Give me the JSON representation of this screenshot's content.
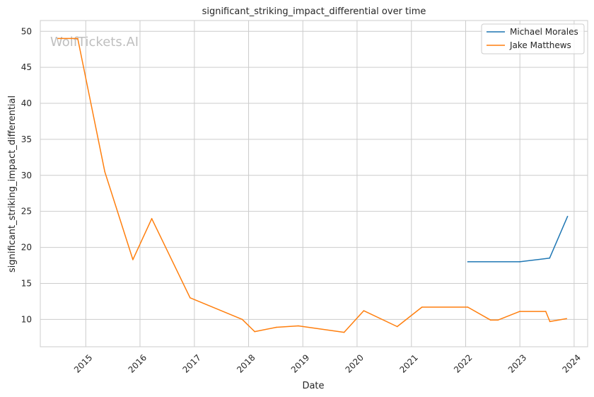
{
  "chart_data": {
    "type": "line",
    "title": "significant_striking_impact_differential over time",
    "xlabel": "Date",
    "ylabel": "significant_striking_impact_differential",
    "watermark": "WolfTickets.AI",
    "x_ticks": [
      "2015",
      "2016",
      "2017",
      "2018",
      "2019",
      "2020",
      "2021",
      "2022",
      "2023",
      "2024"
    ],
    "y_ticks": [
      10,
      15,
      20,
      25,
      30,
      35,
      40,
      45,
      50
    ],
    "xlim": [
      "2014-03-01",
      "2024-04-01"
    ],
    "ylim": [
      6.2,
      51.5
    ],
    "grid": true,
    "legend_position": "top-right",
    "series": [
      {
        "name": "Michael Morales",
        "color": "#1f77b4",
        "points": [
          {
            "x": "2022-01-15",
            "y": 18.0
          },
          {
            "x": "2022-12-31",
            "y": 18.0
          },
          {
            "x": "2023-07-20",
            "y": 18.5
          },
          {
            "x": "2023-11-18",
            "y": 24.3
          }
        ]
      },
      {
        "name": "Jake Matthews",
        "color": "#ff7f0e",
        "points": [
          {
            "x": "2014-06-28",
            "y": 49.0
          },
          {
            "x": "2014-11-08",
            "y": 49.0
          },
          {
            "x": "2015-05-09",
            "y": 30.5
          },
          {
            "x": "2015-11-14",
            "y": 18.3
          },
          {
            "x": "2016-03-20",
            "y": 24.0
          },
          {
            "x": "2016-12-03",
            "y": 13.0
          },
          {
            "x": "2017-11-19",
            "y": 10.0
          },
          {
            "x": "2018-02-11",
            "y": 8.3
          },
          {
            "x": "2018-07-07",
            "y": 8.9
          },
          {
            "x": "2018-12-02",
            "y": 9.1
          },
          {
            "x": "2019-10-06",
            "y": 8.2
          },
          {
            "x": "2020-02-15",
            "y": 11.2
          },
          {
            "x": "2020-09-27",
            "y": 9.0
          },
          {
            "x": "2021-03-13",
            "y": 11.7
          },
          {
            "x": "2022-01-15",
            "y": 11.7
          },
          {
            "x": "2022-06-18",
            "y": 9.9
          },
          {
            "x": "2022-08-06",
            "y": 9.9
          },
          {
            "x": "2022-12-31",
            "y": 11.1
          },
          {
            "x": "2023-06-24",
            "y": 11.1
          },
          {
            "x": "2023-07-22",
            "y": 9.7
          },
          {
            "x": "2023-11-11",
            "y": 10.1
          }
        ]
      }
    ]
  }
}
